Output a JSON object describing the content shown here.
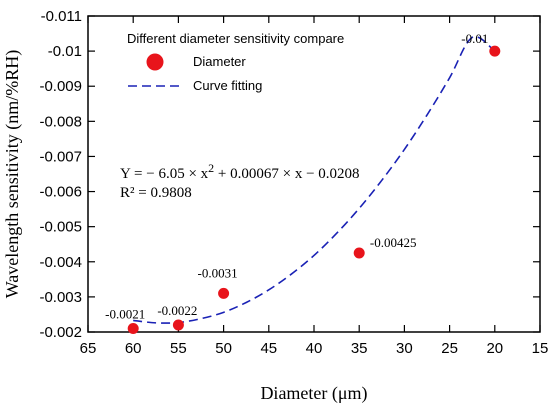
{
  "chart_data": {
    "type": "scatter",
    "xlabel": "Diameter (μm)",
    "ylabel": "Wavelength sensitivity (nm/%RH)",
    "xlim": [
      65,
      15
    ],
    "ylim": [
      -0.002,
      -0.011
    ],
    "x_ticks": [
      65,
      60,
      55,
      50,
      45,
      40,
      35,
      30,
      25,
      20,
      15
    ],
    "y_ticks": [
      -0.011,
      -0.01,
      -0.009,
      -0.008,
      -0.007,
      -0.006,
      -0.005,
      -0.004,
      -0.003,
      -0.002
    ],
    "x_tick_labels": [
      "65",
      "60",
      "55",
      "50",
      "45",
      "40",
      "35",
      "30",
      "25",
      "20",
      "15"
    ],
    "y_tick_labels": [
      "-0.011",
      "-0.01",
      "-0.009",
      "-0.008",
      "-0.007",
      "-0.006",
      "-0.005",
      "-0.004",
      "-0.003",
      "-0.002"
    ],
    "legend": {
      "title": "Different diameter sensitivity compare",
      "placement": "top-left",
      "entries": [
        "Diameter",
        "Curve fitting"
      ]
    },
    "series": [
      {
        "name": "Diameter",
        "kind": "scatter",
        "color": "#e8141b",
        "x": [
          60,
          55,
          50,
          35,
          20
        ],
        "y": [
          -0.0021,
          -0.0022,
          -0.0031,
          -0.00425,
          -0.01
        ],
        "labels": [
          "-0.0021",
          "-0.0022",
          "-0.0031",
          "-0.00425",
          "-0.01"
        ]
      },
      {
        "name": "Curve fitting",
        "kind": "line",
        "style": "dashed",
        "color": "#1a22b5",
        "x": [
          60,
          57.5,
          55,
          52.5,
          50,
          47.5,
          45,
          42.5,
          40,
          37.5,
          35,
          32.5,
          30,
          27.5,
          25,
          22.5,
          20
        ],
        "y": [
          -0.00233,
          -0.00226,
          -0.00227,
          -0.00238,
          -0.00256,
          -0.00284,
          -0.0032,
          -0.00365,
          -0.00418,
          -0.00481,
          -0.00552,
          -0.00632,
          -0.0072,
          -0.00818,
          -0.00924,
          -0.01039,
          -0.01
        ]
      }
    ],
    "annotations": {
      "equation_prefix": "Y = − 6.05 × x",
      "equation_power": "2",
      "equation_suffix": " + 0.00067 × x − 0.0208",
      "r_squared": "R² = 0.9808"
    }
  }
}
